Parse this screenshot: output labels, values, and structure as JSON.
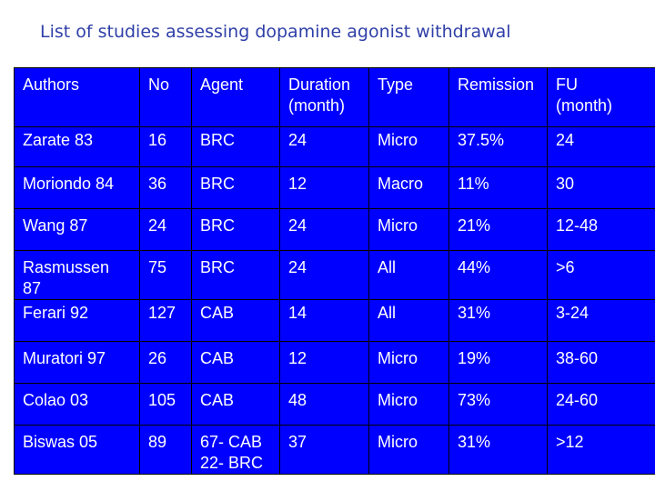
{
  "slide": {
    "title": "List of studies assessing dopamine agonist withdrawal"
  },
  "table": {
    "headers": [
      [
        "Authors"
      ],
      [
        "No"
      ],
      [
        "Agent"
      ],
      [
        "Duration",
        "(month)"
      ],
      [
        "Type"
      ],
      [
        "Remission"
      ],
      [
        "FU",
        "(month)"
      ]
    ],
    "rows": [
      {
        "authors": [
          "Zarate 83"
        ],
        "no": "16",
        "agent": [
          "BRC"
        ],
        "duration": "24",
        "type": "Micro",
        "remission": "37.5%",
        "fu": "24"
      },
      {
        "authors": [
          "Moriondo 84"
        ],
        "no": "36",
        "agent": [
          "BRC"
        ],
        "duration": "12",
        "type": "Macro",
        "remission": "11%",
        "fu": "30"
      },
      {
        "authors": [
          "Wang 87"
        ],
        "no": "24",
        "agent": [
          "BRC"
        ],
        "duration": "24",
        "type": "Micro",
        "remission": "21%",
        "fu": "12-48"
      },
      {
        "authors": [
          "Rasmussen",
          "87"
        ],
        "no": "75",
        "agent": [
          "BRC"
        ],
        "duration": "24",
        "type": "All",
        "remission": "44%",
        "fu": ">6"
      },
      {
        "authors": [
          "Ferari 92"
        ],
        "no": "127",
        "agent": [
          "CAB"
        ],
        "duration": "14",
        "type": "All",
        "remission": "31%",
        "fu": "3-24"
      },
      {
        "authors": [
          "Muratori 97"
        ],
        "no": "26",
        "agent": [
          "CAB"
        ],
        "duration": "12",
        "type": "Micro",
        "remission": "19%",
        "fu": "38-60"
      },
      {
        "authors": [
          "Colao 03"
        ],
        "no": "105",
        "agent": [
          "CAB"
        ],
        "duration": "48",
        "type": "Micro",
        "remission": "73%",
        "fu": "24-60"
      },
      {
        "authors": [
          "Biswas 05"
        ],
        "no": "89",
        "agent": [
          "67- CAB",
          "22- BRC"
        ],
        "duration": "37",
        "type": "Micro",
        "remission": "31%",
        "fu": ">12"
      }
    ]
  }
}
